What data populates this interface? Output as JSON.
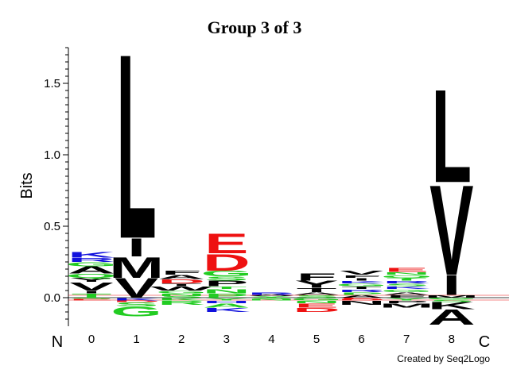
{
  "chart_data": {
    "type": "sequence_logo",
    "title": "Group 3 of 3",
    "ylabel": "Bits",
    "ylim": [
      -0.2,
      1.75
    ],
    "yticks": [
      0.0,
      0.5,
      1.0,
      1.5
    ],
    "ytick_labels": [
      "0.0",
      "0.5",
      "1.0",
      "1.5"
    ],
    "positions": [
      "0",
      "1",
      "2",
      "3",
      "4",
      "5",
      "6",
      "7",
      "8"
    ],
    "n_label": "N",
    "c_label": "C",
    "credit": "Created by Seq2Logo",
    "colors": {
      "black": "#000000",
      "green": "#22cc22",
      "red": "#ee1111",
      "blue": "#1111dd"
    },
    "columns": [
      {
        "pos": "0",
        "above": [
          {
            "letter": "T",
            "bits": 0.03,
            "color": "green"
          },
          {
            "letter": "I",
            "bits": 0.02,
            "color": "black"
          },
          {
            "letter": "V",
            "bits": 0.06,
            "color": "black"
          },
          {
            "letter": "Y",
            "bits": 0.03,
            "color": "black"
          },
          {
            "letter": "Q",
            "bits": 0.03,
            "color": "green"
          },
          {
            "letter": "A",
            "bits": 0.05,
            "color": "black"
          },
          {
            "letter": "G",
            "bits": 0.03,
            "color": "green"
          },
          {
            "letter": "R",
            "bits": 0.03,
            "color": "blue"
          },
          {
            "letter": "K",
            "bits": 0.04,
            "color": "blue"
          }
        ],
        "below": [
          {
            "letter": "S",
            "bits": 0.01,
            "color": "green"
          },
          {
            "letter": "E",
            "bits": 0.01,
            "color": "red"
          }
        ]
      },
      {
        "pos": "1",
        "above": [
          {
            "letter": "V",
            "bits": 0.14,
            "color": "black"
          },
          {
            "letter": "M",
            "bits": 0.15,
            "color": "black"
          },
          {
            "letter": "I",
            "bits": 0.13,
            "color": "black"
          },
          {
            "letter": "L",
            "bits": 1.33,
            "color": "black"
          }
        ],
        "below": [
          {
            "letter": "K",
            "bits": 0.02,
            "color": "blue"
          },
          {
            "letter": "D",
            "bits": 0.01,
            "color": "red"
          },
          {
            "letter": "S",
            "bits": 0.03,
            "color": "green"
          },
          {
            "letter": "G",
            "bits": 0.07,
            "color": "green"
          }
        ]
      },
      {
        "pos": "2",
        "above": [
          {
            "letter": "S",
            "bits": 0.01,
            "color": "green"
          },
          {
            "letter": "N",
            "bits": 0.02,
            "color": "green"
          },
          {
            "letter": "G",
            "bits": 0.02,
            "color": "green"
          },
          {
            "letter": "W",
            "bits": 0.03,
            "color": "black"
          },
          {
            "letter": "T",
            "bits": 0.02,
            "color": "black"
          },
          {
            "letter": "D",
            "bits": 0.03,
            "color": "red"
          },
          {
            "letter": "A",
            "bits": 0.03,
            "color": "black"
          },
          {
            "letter": "F",
            "bits": 0.03,
            "color": "black"
          }
        ],
        "below": [
          {
            "letter": "K",
            "bits": 0.02,
            "color": "green"
          },
          {
            "letter": "R",
            "bits": 0.03,
            "color": "green"
          }
        ]
      },
      {
        "pos": "3",
        "above": [
          {
            "letter": "P",
            "bits": 0.03,
            "color": "green"
          },
          {
            "letter": "N",
            "bits": 0.03,
            "color": "green"
          },
          {
            "letter": "T",
            "bits": 0.02,
            "color": "green"
          },
          {
            "letter": "P",
            "bits": 0.04,
            "color": "black"
          },
          {
            "letter": "S",
            "bits": 0.03,
            "color": "green"
          },
          {
            "letter": "G",
            "bits": 0.04,
            "color": "green"
          },
          {
            "letter": "D",
            "bits": 0.12,
            "color": "red"
          },
          {
            "letter": "E",
            "bits": 0.14,
            "color": "red"
          }
        ],
        "below": [
          {
            "letter": "Y",
            "bits": 0.02,
            "color": "green"
          },
          {
            "letter": "H",
            "bits": 0.02,
            "color": "blue"
          },
          {
            "letter": "A",
            "bits": 0.03,
            "color": "green"
          },
          {
            "letter": "K",
            "bits": 0.03,
            "color": "blue"
          }
        ]
      },
      {
        "pos": "4",
        "above": [
          {
            "letter": "Y",
            "bits": 0.01,
            "color": "green"
          },
          {
            "letter": "A",
            "bits": 0.01,
            "color": "black"
          },
          {
            "letter": "R",
            "bits": 0.02,
            "color": "blue"
          }
        ],
        "below": [
          {
            "letter": "S",
            "bits": 0.01,
            "color": "green"
          },
          {
            "letter": "N",
            "bits": 0.01,
            "color": "green"
          }
        ]
      },
      {
        "pos": "5",
        "above": [
          {
            "letter": "S",
            "bits": 0.02,
            "color": "green"
          },
          {
            "letter": "A",
            "bits": 0.02,
            "color": "black"
          },
          {
            "letter": "T",
            "bits": 0.03,
            "color": "black"
          },
          {
            "letter": "Y",
            "bits": 0.05,
            "color": "black"
          },
          {
            "letter": "F",
            "bits": 0.05,
            "color": "black"
          }
        ],
        "below": [
          {
            "letter": "G",
            "bits": 0.02,
            "color": "green"
          },
          {
            "letter": "N",
            "bits": 0.02,
            "color": "green"
          },
          {
            "letter": "E",
            "bits": 0.03,
            "color": "red"
          },
          {
            "letter": "D",
            "bits": 0.03,
            "color": "red"
          }
        ]
      },
      {
        "pos": "6",
        "above": [
          {
            "letter": "A",
            "bits": 0.02,
            "color": "black"
          },
          {
            "letter": "P",
            "bits": 0.02,
            "color": "green"
          },
          {
            "letter": "R",
            "bits": 0.02,
            "color": "blue"
          },
          {
            "letter": "T",
            "bits": 0.02,
            "color": "black"
          },
          {
            "letter": "G",
            "bits": 0.02,
            "color": "green"
          },
          {
            "letter": "K",
            "bits": 0.02,
            "color": "blue"
          },
          {
            "letter": "I",
            "bits": 0.02,
            "color": "black"
          },
          {
            "letter": "F",
            "bits": 0.02,
            "color": "black"
          },
          {
            "letter": "V",
            "bits": 0.03,
            "color": "black"
          }
        ],
        "below": [
          {
            "letter": "E",
            "bits": 0.01,
            "color": "red"
          },
          {
            "letter": "D",
            "bits": 0.01,
            "color": "red"
          },
          {
            "letter": "N",
            "bits": 0.03,
            "color": "black"
          }
        ]
      },
      {
        "pos": "7",
        "above": [
          {
            "letter": "F",
            "bits": 0.02,
            "color": "black"
          },
          {
            "letter": "A",
            "bits": 0.02,
            "color": "black"
          },
          {
            "letter": "G",
            "bits": 0.02,
            "color": "green"
          },
          {
            "letter": "K",
            "bits": 0.02,
            "color": "blue"
          },
          {
            "letter": "S",
            "bits": 0.02,
            "color": "green"
          },
          {
            "letter": "R",
            "bits": 0.02,
            "color": "blue"
          },
          {
            "letter": "T",
            "bits": 0.02,
            "color": "green"
          },
          {
            "letter": "Q",
            "bits": 0.02,
            "color": "green"
          },
          {
            "letter": "N",
            "bits": 0.02,
            "color": "green"
          },
          {
            "letter": "E",
            "bits": 0.03,
            "color": "red"
          }
        ],
        "below": [
          {
            "letter": "Y",
            "bits": 0.02,
            "color": "green"
          },
          {
            "letter": "P",
            "bits": 0.02,
            "color": "black"
          },
          {
            "letter": "M",
            "bits": 0.03,
            "color": "black"
          }
        ]
      },
      {
        "pos": "8",
        "above": [
          {
            "letter": "M",
            "bits": 0.02,
            "color": "black"
          },
          {
            "letter": "I",
            "bits": 0.14,
            "color": "black"
          },
          {
            "letter": "V",
            "bits": 0.65,
            "color": "black"
          },
          {
            "letter": "L",
            "bits": 0.67,
            "color": "black"
          }
        ],
        "below": [
          {
            "letter": "G",
            "bits": 0.01,
            "color": "green"
          },
          {
            "letter": "S",
            "bits": 0.02,
            "color": "green"
          },
          {
            "letter": "K",
            "bits": 0.05,
            "color": "black"
          },
          {
            "letter": "A",
            "bits": 0.11,
            "color": "black"
          }
        ]
      }
    ]
  }
}
